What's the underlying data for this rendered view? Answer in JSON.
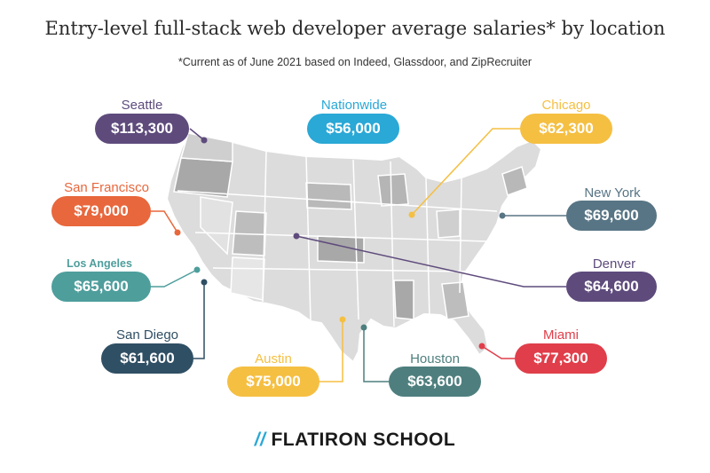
{
  "title": "Entry-level full-stack web developer average salaries* by location",
  "subtitle": "*Current as of June 2021 based on Indeed, Glassdoor, and ZipRecruiter",
  "logo": {
    "slashes": "//",
    "text": "FLATIRON SCHOOL",
    "icon": "double-slash-logo-icon",
    "accent": "#2aa8d6"
  },
  "locations": [
    {
      "key": "seattle",
      "name": "Seattle",
      "salary": "$113,300",
      "color": "#5e4b7c"
    },
    {
      "key": "nationwide",
      "name": "Nationwide",
      "salary": "$56,000",
      "color": "#2aa8d6"
    },
    {
      "key": "chicago",
      "name": "Chicago",
      "salary": "$62,300",
      "color": "#f5bf42"
    },
    {
      "key": "san_francisco",
      "name": "San Francisco",
      "salary": "$79,000",
      "color": "#e8673c"
    },
    {
      "key": "new_york",
      "name": "New York",
      "salary": "$69,600",
      "color": "#587585"
    },
    {
      "key": "los_angeles",
      "name": "Los Angeles",
      "salary": "$65,600",
      "color": "#4e9e9c"
    },
    {
      "key": "denver",
      "name": "Denver",
      "salary": "$64,600",
      "color": "#5e4b7c"
    },
    {
      "key": "san_diego",
      "name": "San Diego",
      "salary": "$61,600",
      "color": "#2f4f64"
    },
    {
      "key": "miami",
      "name": "Miami",
      "salary": "$77,300",
      "color": "#e03e4a"
    },
    {
      "key": "austin",
      "name": "Austin",
      "salary": "$75,000",
      "color": "#f5bf42"
    },
    {
      "key": "houston",
      "name": "Houston",
      "salary": "$63,600",
      "color": "#4e7f7e"
    }
  ]
}
